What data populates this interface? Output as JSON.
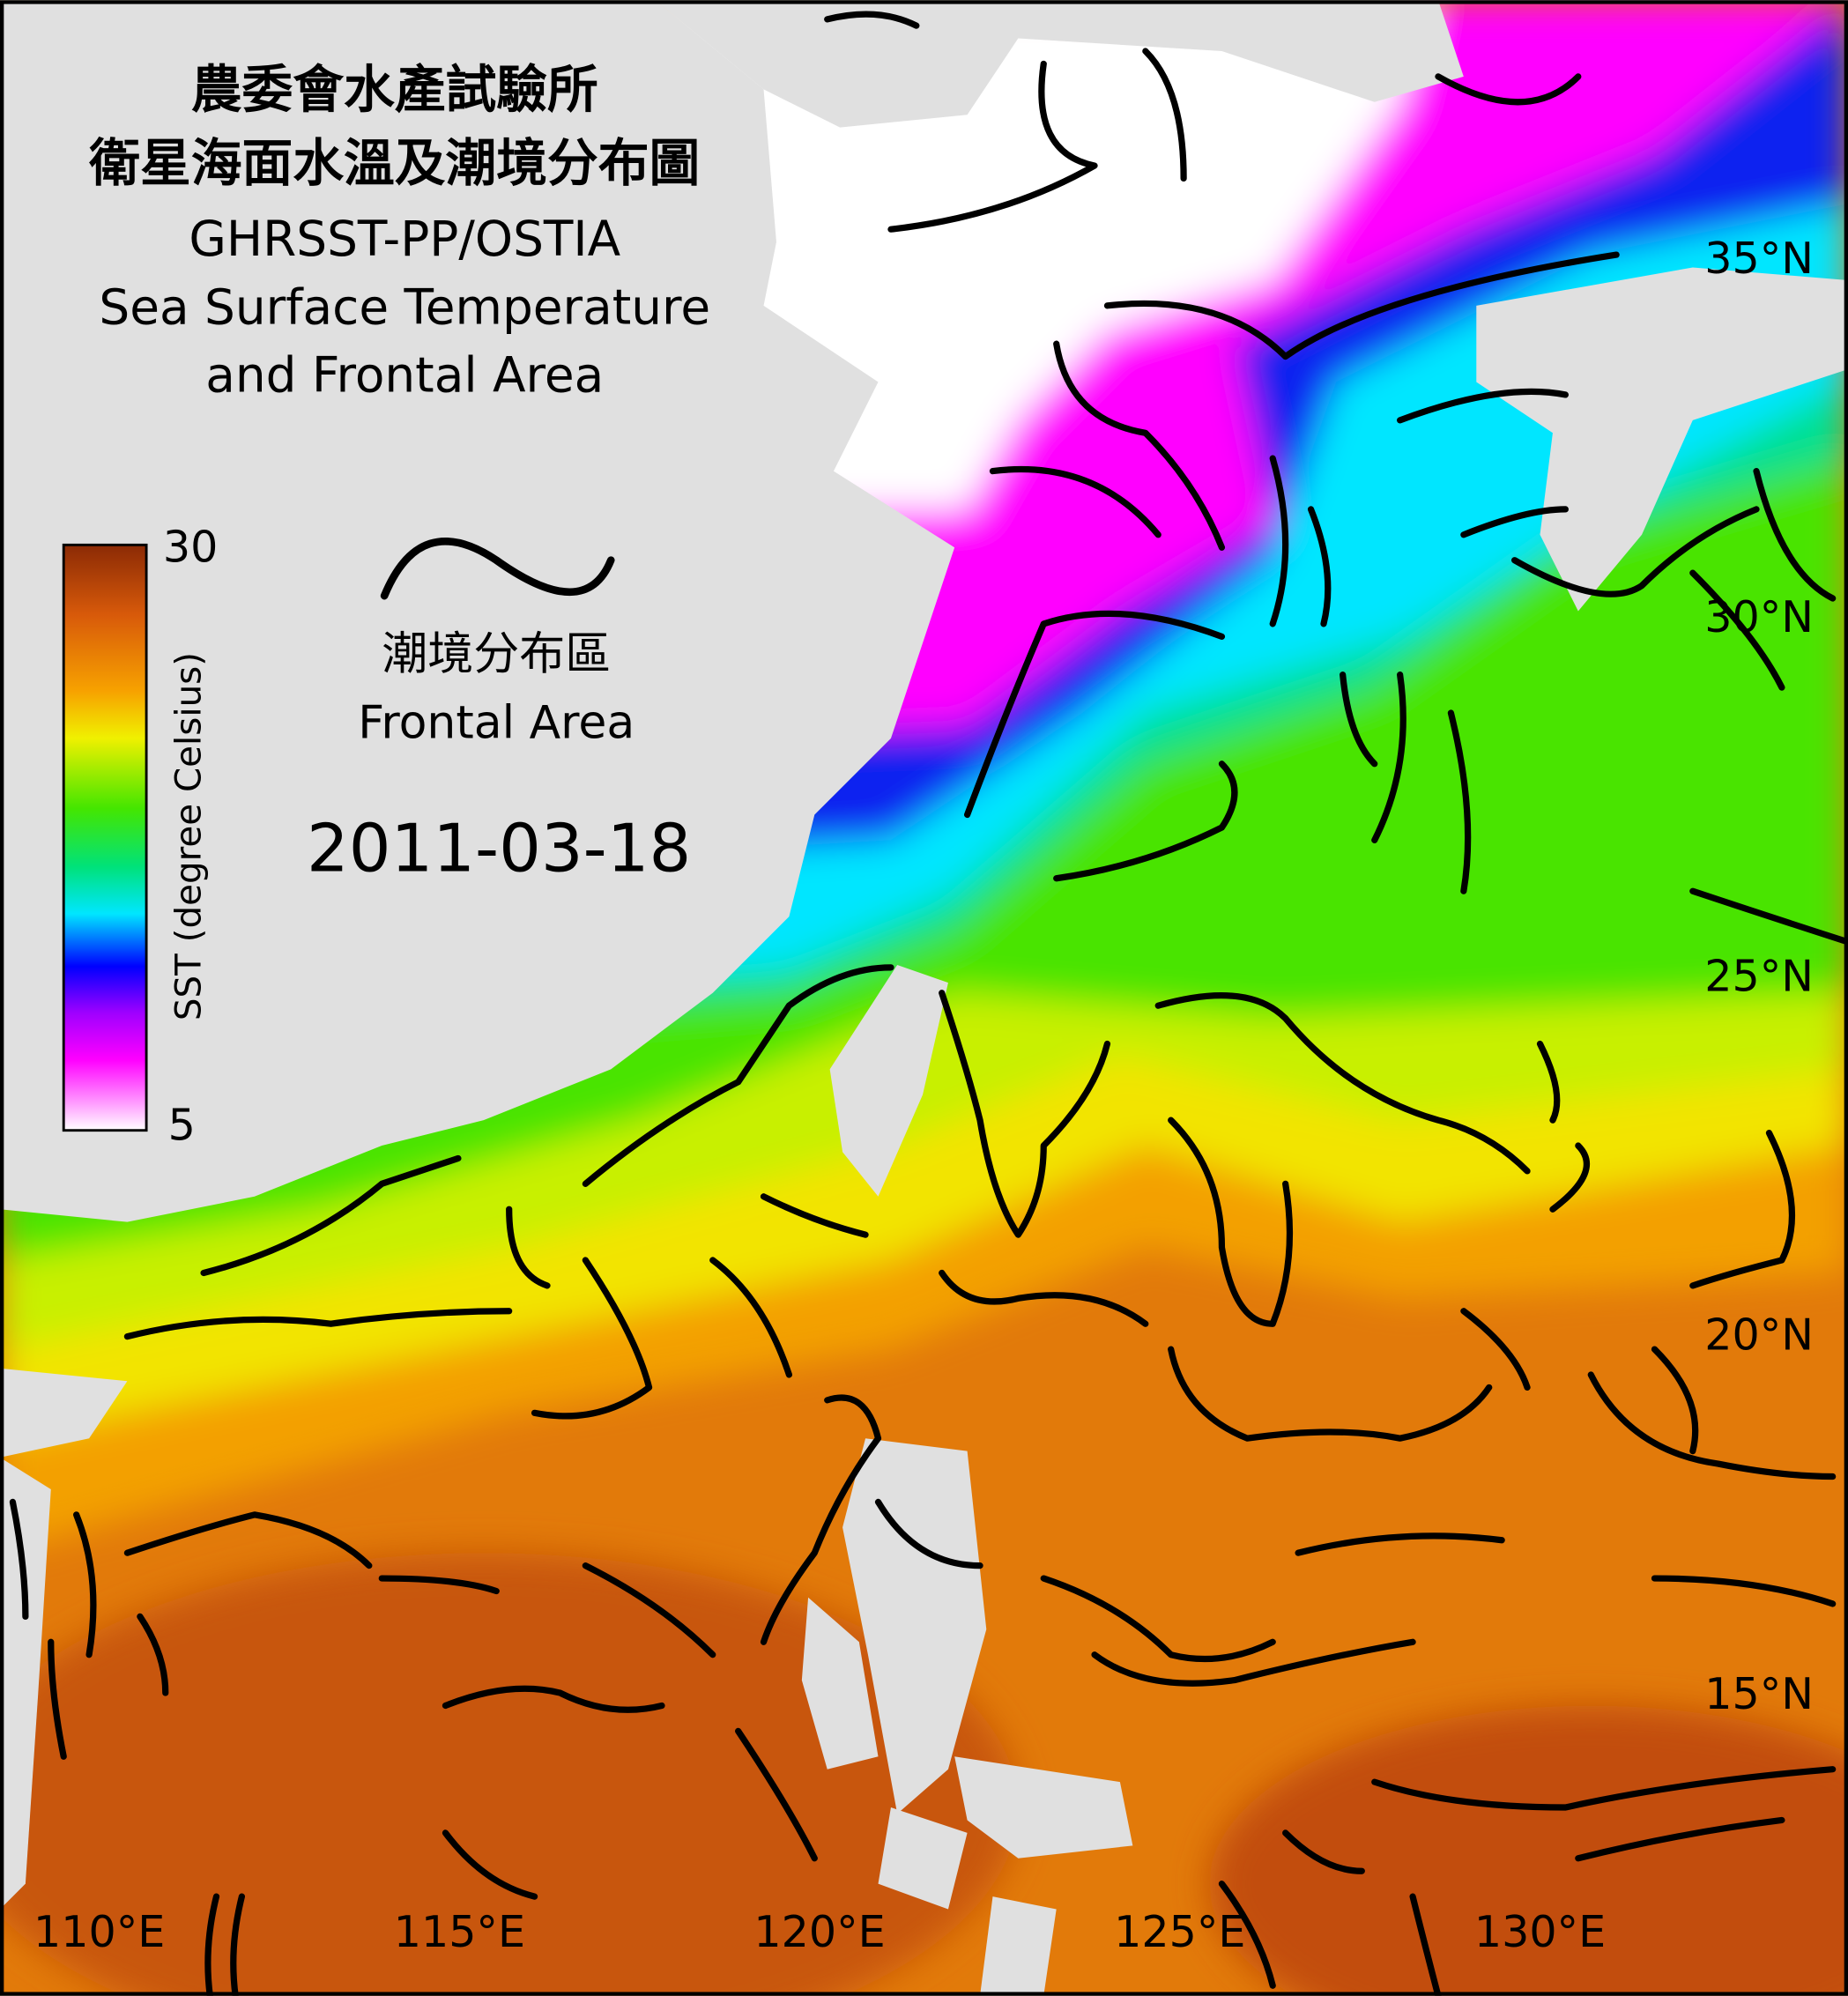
{
  "title": [
    "農委會水產試驗所",
    "衛星海面水溫及潮境分布圖",
    "GHRSST-PP/OSTIA",
    "Sea Surface Temperature",
    "and Frontal Area"
  ],
  "colorbar": {
    "label": "SST (degree Celsius)",
    "max": 30,
    "min": 5
  },
  "legend": {
    "label_zh": "潮境分布區",
    "label_en": "Frontal Area"
  },
  "date": "2011-03-18",
  "lat_labels": [
    "35°N",
    "30°N",
    "25°N",
    "20°N",
    "15°N"
  ],
  "lon_labels": [
    "110°E",
    "115°E",
    "120°E",
    "125°E",
    "130°E"
  ]
}
